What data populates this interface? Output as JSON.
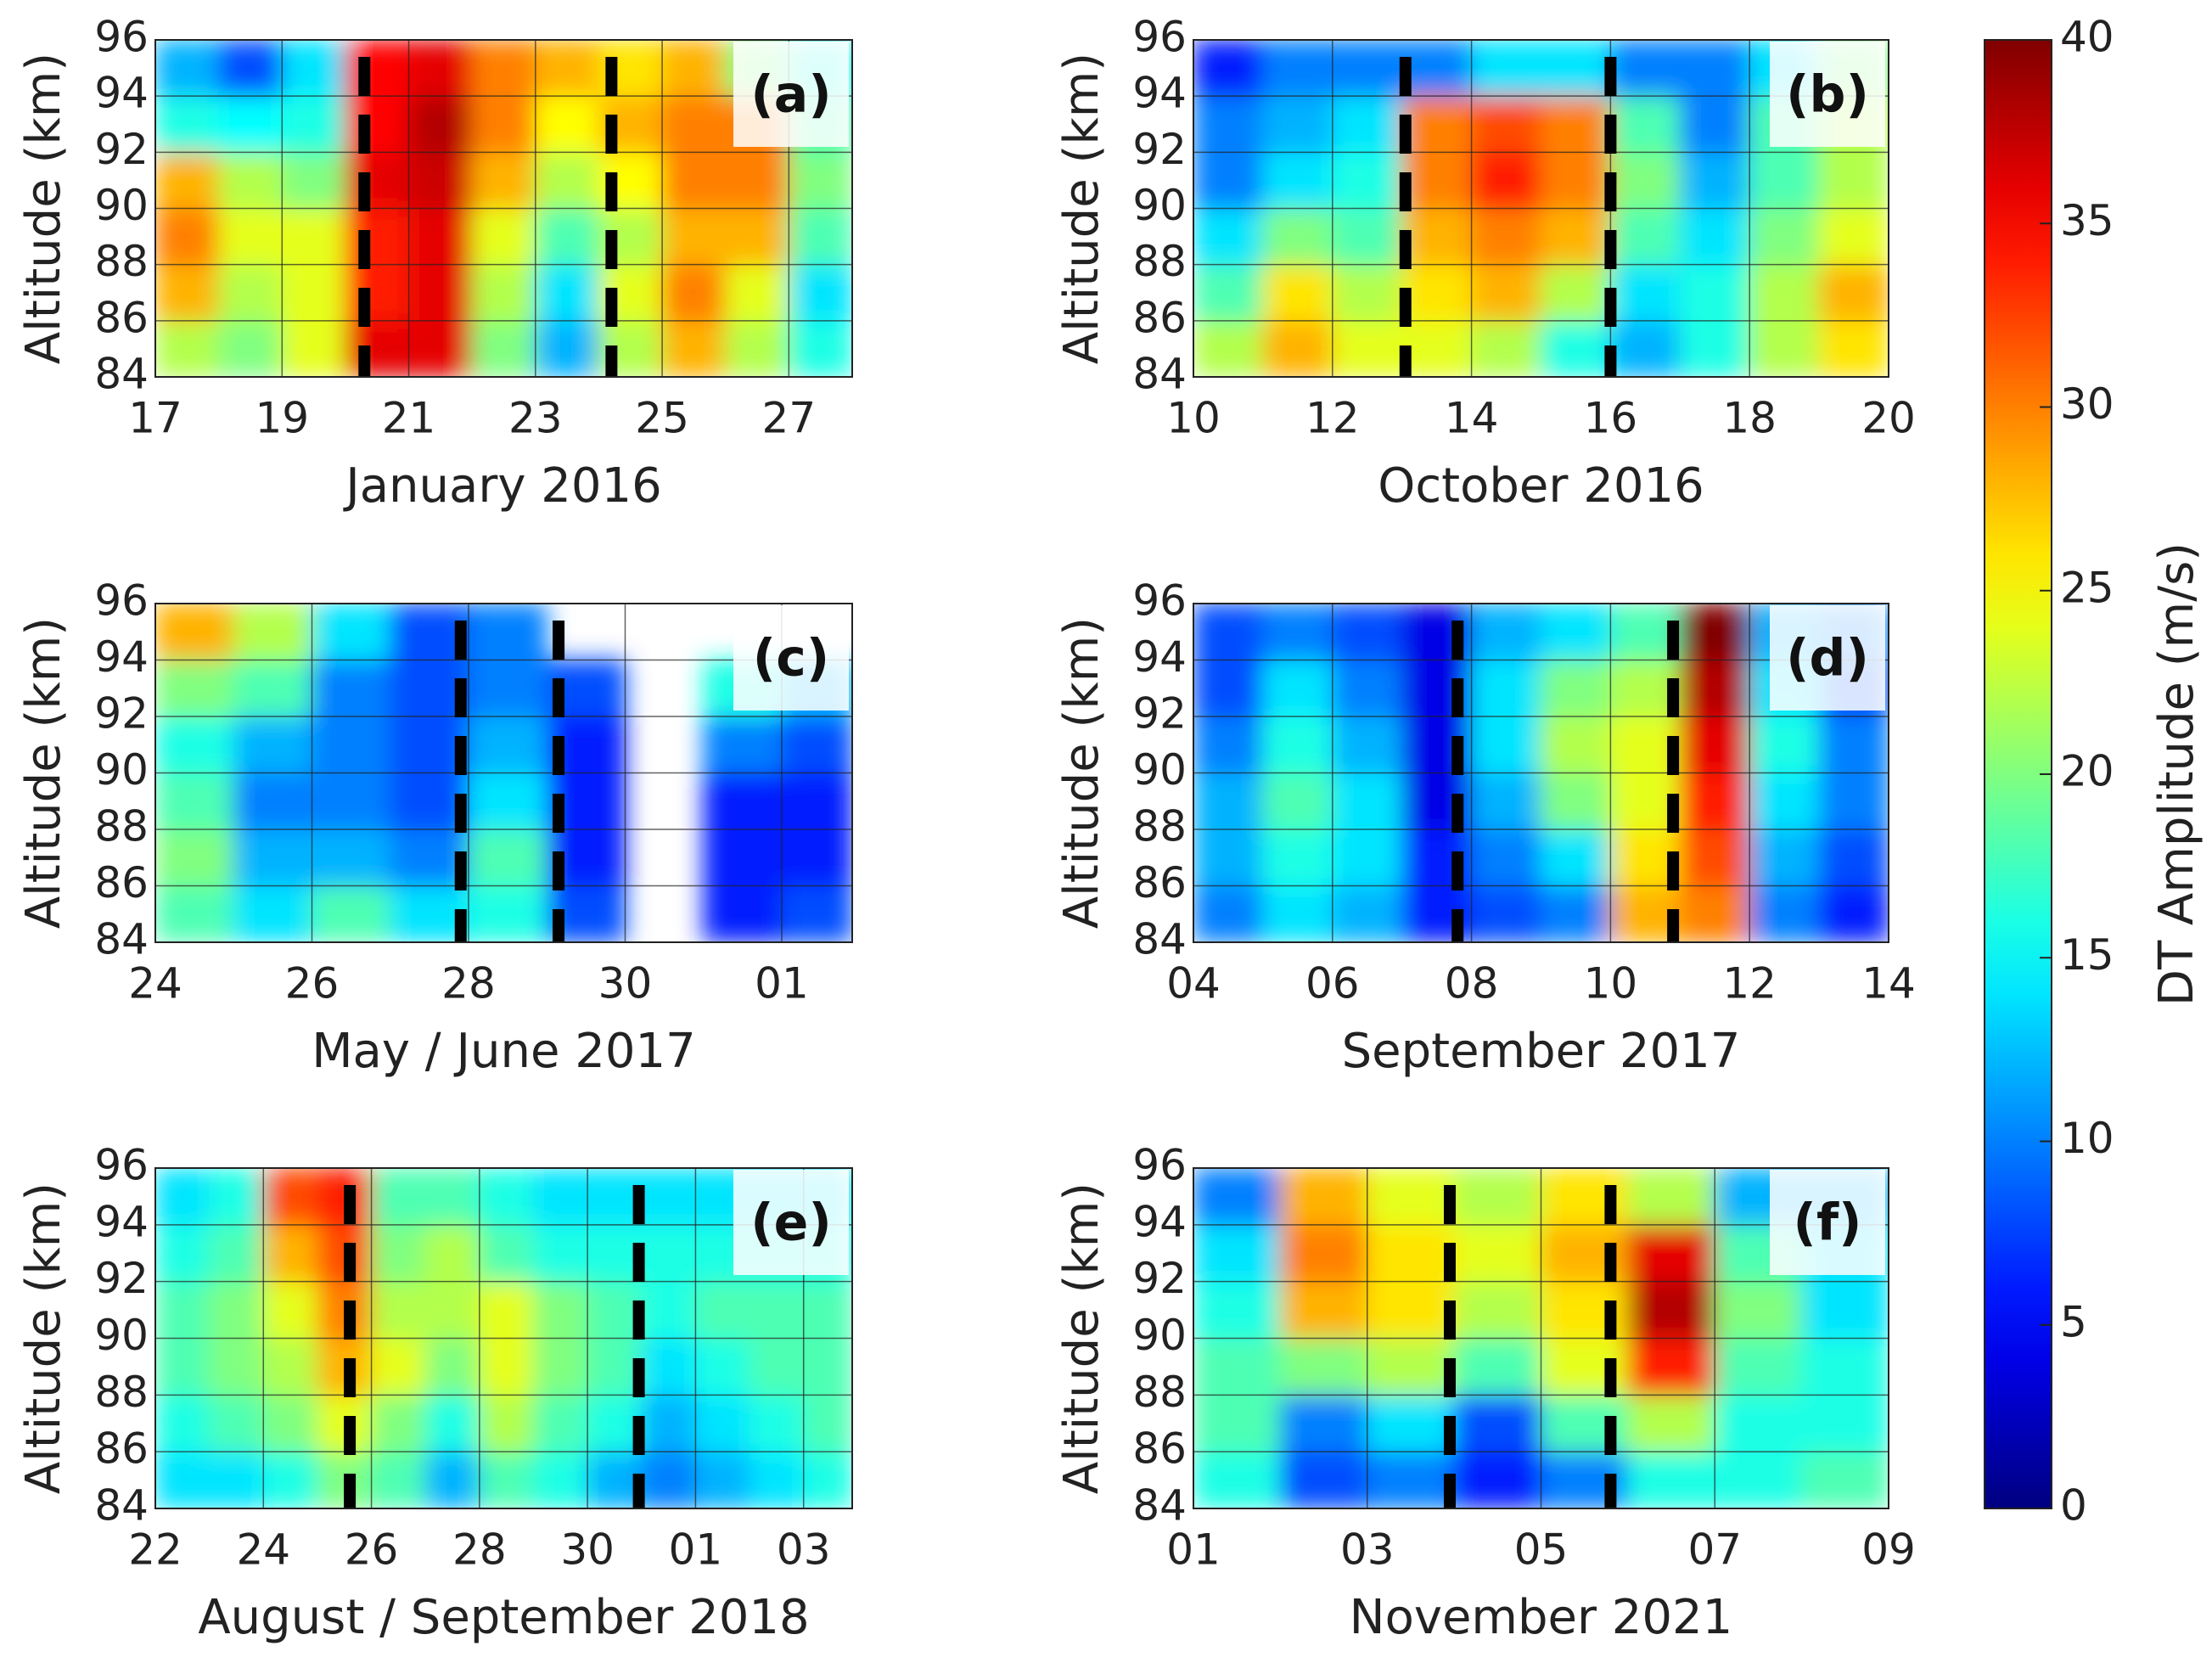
{
  "chart_data": [
    {
      "type": "heatmap",
      "panel_label": "(a)",
      "xlabel": "January 2016",
      "ylabel": "Altitude (km)",
      "x": [
        17,
        18,
        19,
        20,
        21,
        22,
        23,
        24,
        25,
        26,
        27,
        28
      ],
      "y": [
        84,
        86,
        88,
        90,
        92,
        94,
        96
      ],
      "z": [
        [
          22,
          20,
          24,
          36,
          36,
          20,
          12,
          22,
          28,
          22,
          16
        ],
        [
          28,
          22,
          24,
          34,
          36,
          22,
          14,
          24,
          30,
          24,
          14
        ],
        [
          30,
          24,
          24,
          34,
          36,
          24,
          18,
          22,
          28,
          28,
          18
        ],
        [
          28,
          22,
          20,
          36,
          37,
          28,
          22,
          25,
          30,
          30,
          20
        ],
        [
          16,
          15,
          16,
          35,
          38,
          30,
          25,
          28,
          30,
          30,
          18
        ],
        [
          12,
          8,
          14,
          35,
          36,
          30,
          28,
          26,
          28,
          20,
          16
        ]
      ],
      "xlim": [
        17,
        28
      ],
      "ylim": [
        84,
        96
      ],
      "xticks": [
        17,
        19,
        21,
        23,
        25,
        27
      ],
      "yticks": [
        84,
        86,
        88,
        90,
        92,
        94,
        96
      ],
      "dashed_lines": [
        20.3,
        24.2
      ],
      "grid": true
    },
    {
      "type": "heatmap",
      "panel_label": "(b)",
      "xlabel": "October 2016",
      "ylabel": "Altitude (km)",
      "x": [
        10,
        11,
        12,
        13,
        14,
        15,
        16,
        17,
        18,
        19,
        20
      ],
      "y": [
        84,
        86,
        88,
        90,
        92,
        94,
        96
      ],
      "z": [
        [
          22,
          28,
          24,
          24,
          22,
          16,
          12,
          16,
          22,
          26
        ],
        [
          18,
          26,
          22,
          26,
          28,
          22,
          14,
          16,
          22,
          28
        ],
        [
          14,
          20,
          18,
          28,
          30,
          28,
          18,
          14,
          20,
          24
        ],
        [
          10,
          14,
          16,
          30,
          34,
          30,
          20,
          12,
          18,
          22
        ],
        [
          10,
          12,
          14,
          30,
          32,
          30,
          18,
          10,
          18,
          22
        ],
        [
          6,
          10,
          10,
          10,
          14,
          14,
          10,
          10,
          14,
          20
        ]
      ],
      "xlim": [
        10,
        20
      ],
      "ylim": [
        84,
        96
      ],
      "xticks": [
        10,
        12,
        14,
        16,
        18,
        20
      ],
      "yticks": [
        84,
        86,
        88,
        90,
        92,
        94,
        96
      ],
      "dashed_lines": [
        13.05,
        16
      ],
      "grid": true
    },
    {
      "type": "heatmap",
      "panel_label": "(c)",
      "xlabel": "May / June 2017",
      "ylabel": "Altitude (km)",
      "x": [
        24,
        25,
        26,
        27,
        28,
        29,
        30,
        31,
        32,
        32.9
      ],
      "y": [
        84,
        86,
        88,
        90,
        92,
        94,
        96
      ],
      "z": [
        [
          18,
          14,
          18,
          14,
          16,
          8,
          null,
          6,
          8
        ],
        [
          20,
          12,
          12,
          10,
          18,
          6,
          null,
          6,
          6
        ],
        [
          18,
          10,
          10,
          8,
          14,
          6,
          null,
          6,
          6
        ],
        [
          16,
          12,
          10,
          8,
          12,
          6,
          null,
          10,
          8
        ],
        [
          20,
          18,
          10,
          8,
          10,
          8,
          null,
          16,
          12
        ],
        [
          28,
          22,
          14,
          8,
          10,
          null,
          null,
          null,
          null
        ]
      ],
      "xlim": [
        24,
        32.9
      ],
      "ylim": [
        84,
        96
      ],
      "xticks": [
        24,
        26,
        28,
        30,
        {
          "value": 32,
          "label": "01"
        }
      ],
      "yticks": [
        84,
        86,
        88,
        90,
        92,
        94,
        96
      ],
      "dashed_lines": [
        27.9,
        29.15
      ],
      "grid": true
    },
    {
      "type": "heatmap",
      "panel_label": "(d)",
      "xlabel": "September 2017",
      "ylabel": "Altitude (km)",
      "x": [
        4,
        5,
        6,
        7,
        8,
        9,
        10,
        11,
        12,
        13,
        14
      ],
      "y": [
        84,
        86,
        88,
        90,
        92,
        94,
        96
      ],
      "z": [
        [
          10,
          14,
          12,
          6,
          8,
          10,
          28,
          30,
          10,
          6
        ],
        [
          12,
          16,
          14,
          6,
          10,
          14,
          26,
          32,
          12,
          8
        ],
        [
          12,
          18,
          14,
          4,
          12,
          20,
          24,
          34,
          14,
          10
        ],
        [
          10,
          16,
          12,
          4,
          14,
          22,
          24,
          36,
          16,
          10
        ],
        [
          8,
          14,
          10,
          4,
          14,
          20,
          22,
          38,
          14,
          8
        ],
        [
          8,
          10,
          8,
          4,
          12,
          14,
          18,
          40,
          12,
          10
        ]
      ],
      "xlim": [
        4,
        14
      ],
      "ylim": [
        84,
        96
      ],
      "xticks": [
        {
          "value": 4,
          "label": "04"
        },
        {
          "value": 6,
          "label": "06"
        },
        {
          "value": 8,
          "label": "08"
        },
        10,
        12,
        14
      ],
      "yticks": [
        84,
        86,
        88,
        90,
        92,
        94,
        96
      ],
      "dashed_lines": [
        7.8,
        10.9
      ],
      "grid": true
    },
    {
      "type": "heatmap",
      "panel_label": "(e)",
      "xlabel": "August / September 2018",
      "ylabel": "Altitude (km)",
      "x": [
        22,
        23,
        24,
        25,
        26,
        27,
        28,
        29,
        30,
        31,
        32,
        33,
        34,
        34.9
      ],
      "y": [
        84,
        86,
        88,
        90,
        92,
        94,
        96
      ],
      "z": [
        [
          14,
          14,
          16,
          20,
          18,
          12,
          18,
          16,
          12,
          10,
          12,
          14,
          16
        ],
        [
          16,
          18,
          20,
          24,
          20,
          16,
          22,
          18,
          16,
          12,
          14,
          16,
          18
        ],
        [
          18,
          20,
          22,
          28,
          24,
          20,
          24,
          20,
          18,
          14,
          16,
          18,
          18
        ],
        [
          18,
          20,
          24,
          30,
          22,
          22,
          24,
          20,
          18,
          16,
          18,
          18,
          18
        ],
        [
          16,
          18,
          28,
          32,
          20,
          22,
          18,
          16,
          16,
          16,
          16,
          16,
          16
        ],
        [
          14,
          16,
          32,
          34,
          18,
          18,
          16,
          14,
          14,
          14,
          14,
          14,
          14
        ]
      ],
      "xlim": [
        22,
        34.9
      ],
      "ylim": [
        84,
        96
      ],
      "xticks": [
        22,
        24,
        26,
        28,
        30,
        {
          "value": 32,
          "label": "01"
        },
        {
          "value": 34,
          "label": "03"
        }
      ],
      "yticks": [
        84,
        86,
        88,
        90,
        92,
        94,
        96
      ],
      "dashed_lines": [
        25.6,
        30.95
      ],
      "grid": true
    },
    {
      "type": "heatmap",
      "panel_label": "(f)",
      "xlabel": "November 2021",
      "ylabel": "Altitude (km)",
      "x": [
        1,
        2,
        3,
        4,
        5,
        6,
        7,
        8,
        9
      ],
      "y": [
        84,
        86,
        88,
        90,
        92,
        94,
        96
      ],
      "z": [
        [
          16,
          8,
          10,
          6,
          10,
          16,
          16,
          18
        ],
        [
          18,
          10,
          14,
          8,
          18,
          22,
          16,
          16
        ],
        [
          18,
          20,
          22,
          18,
          24,
          34,
          18,
          16
        ],
        [
          16,
          28,
          26,
          22,
          26,
          38,
          20,
          14
        ],
        [
          14,
          30,
          26,
          24,
          28,
          36,
          18,
          14
        ],
        [
          10,
          28,
          24,
          22,
          26,
          22,
          12,
          12
        ]
      ],
      "xlim": [
        1,
        9
      ],
      "ylim": [
        84,
        96
      ],
      "xticks": [
        {
          "value": 1,
          "label": "01"
        },
        {
          "value": 3,
          "label": "03"
        },
        {
          "value": 5,
          "label": "05"
        },
        {
          "value": 7,
          "label": "07"
        },
        {
          "value": 9,
          "label": "09"
        }
      ],
      "yticks": [
        84,
        86,
        88,
        90,
        92,
        94,
        96
      ],
      "dashed_lines": [
        3.95,
        5.8
      ],
      "grid": true
    },
    {
      "type": "colorbar",
      "label": "DT Amplitude (m/s)",
      "colormap": "jet",
      "clim": [
        0,
        40
      ],
      "ticks": [
        0,
        5,
        10,
        15,
        20,
        25,
        30,
        35,
        40
      ]
    }
  ]
}
